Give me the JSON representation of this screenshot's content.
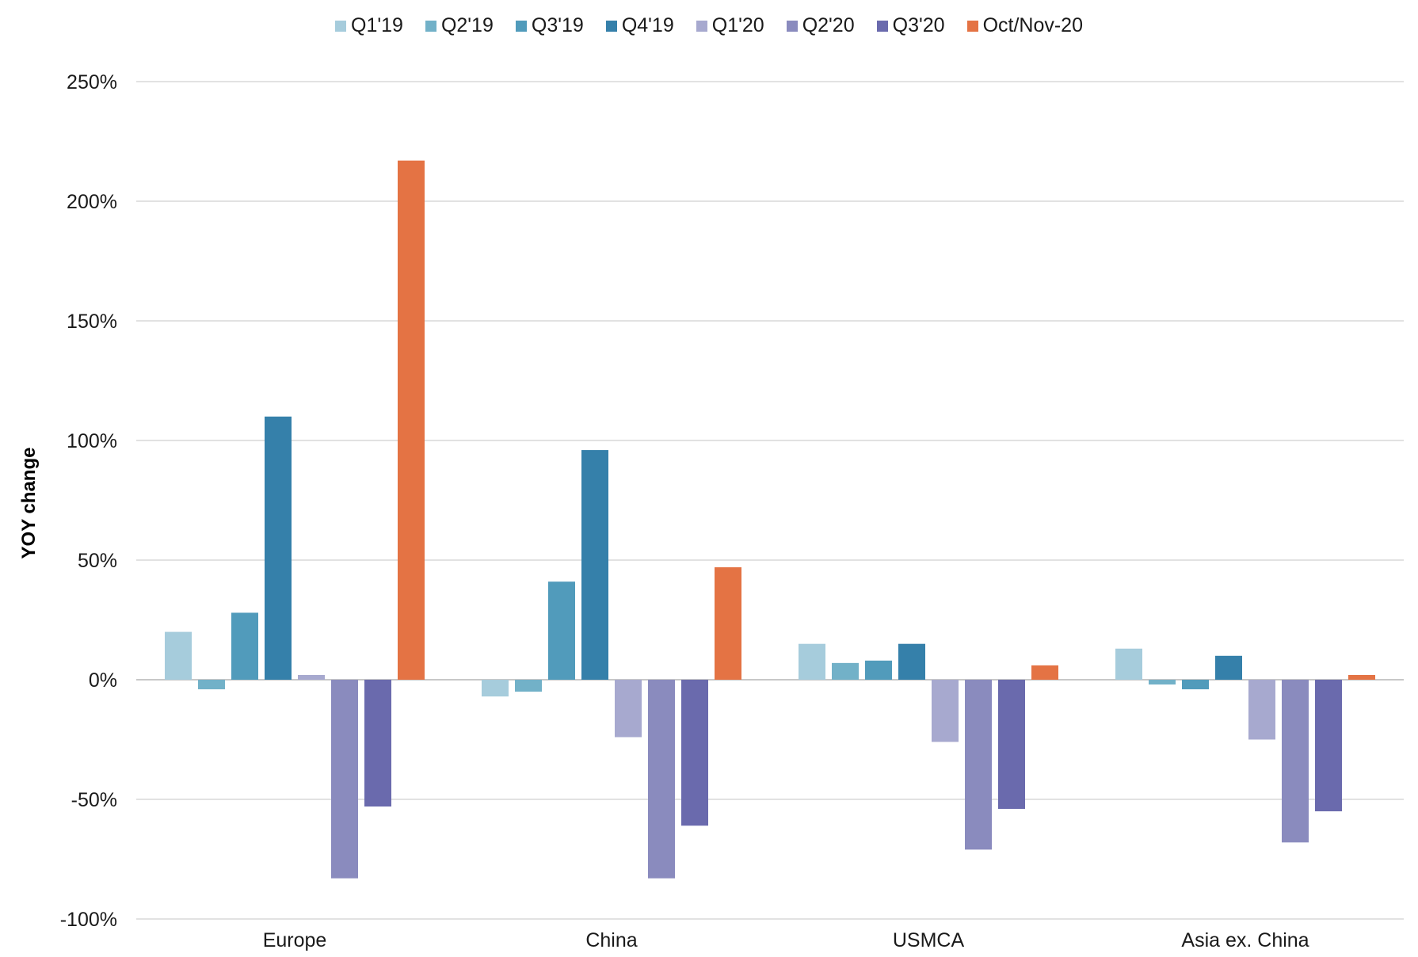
{
  "chart_data": {
    "type": "bar",
    "title": "",
    "xlabel": "",
    "ylabel": "YOY change",
    "ylim": [
      -100,
      250
    ],
    "y_ticks": [
      250,
      200,
      150,
      100,
      50,
      0,
      -50,
      -100
    ],
    "y_tick_labels": [
      "250%",
      "200%",
      "150%",
      "100%",
      "50%",
      "0%",
      "-50%",
      "-100%"
    ],
    "grid": true,
    "legend_position": "top",
    "categories": [
      "Europe",
      "China",
      "USMCA",
      "Asia ex. China"
    ],
    "series": [
      {
        "name": "Q1'19",
        "color": "#a6ccdc",
        "values": [
          20,
          -7,
          15,
          13
        ]
      },
      {
        "name": "Q2'19",
        "color": "#72b1c8",
        "values": [
          -4,
          -5,
          7,
          -2
        ]
      },
      {
        "name": "Q3'19",
        "color": "#519bbb",
        "values": [
          28,
          41,
          8,
          -4
        ]
      },
      {
        "name": "Q4'19",
        "color": "#3580aa",
        "values": [
          110,
          96,
          15,
          10
        ]
      },
      {
        "name": "Q1'20",
        "color": "#a7a9cf",
        "values": [
          2,
          -24,
          -26,
          -25
        ]
      },
      {
        "name": "Q2'20",
        "color": "#8a8bbe",
        "values": [
          -83,
          -83,
          -71,
          -68
        ]
      },
      {
        "name": "Q3'20",
        "color": "#6a6aad",
        "values": [
          -53,
          -61,
          -54,
          -55
        ]
      },
      {
        "name": "Oct/Nov-20",
        "color": "#e47344",
        "values": [
          217,
          47,
          6,
          2
        ]
      }
    ]
  }
}
